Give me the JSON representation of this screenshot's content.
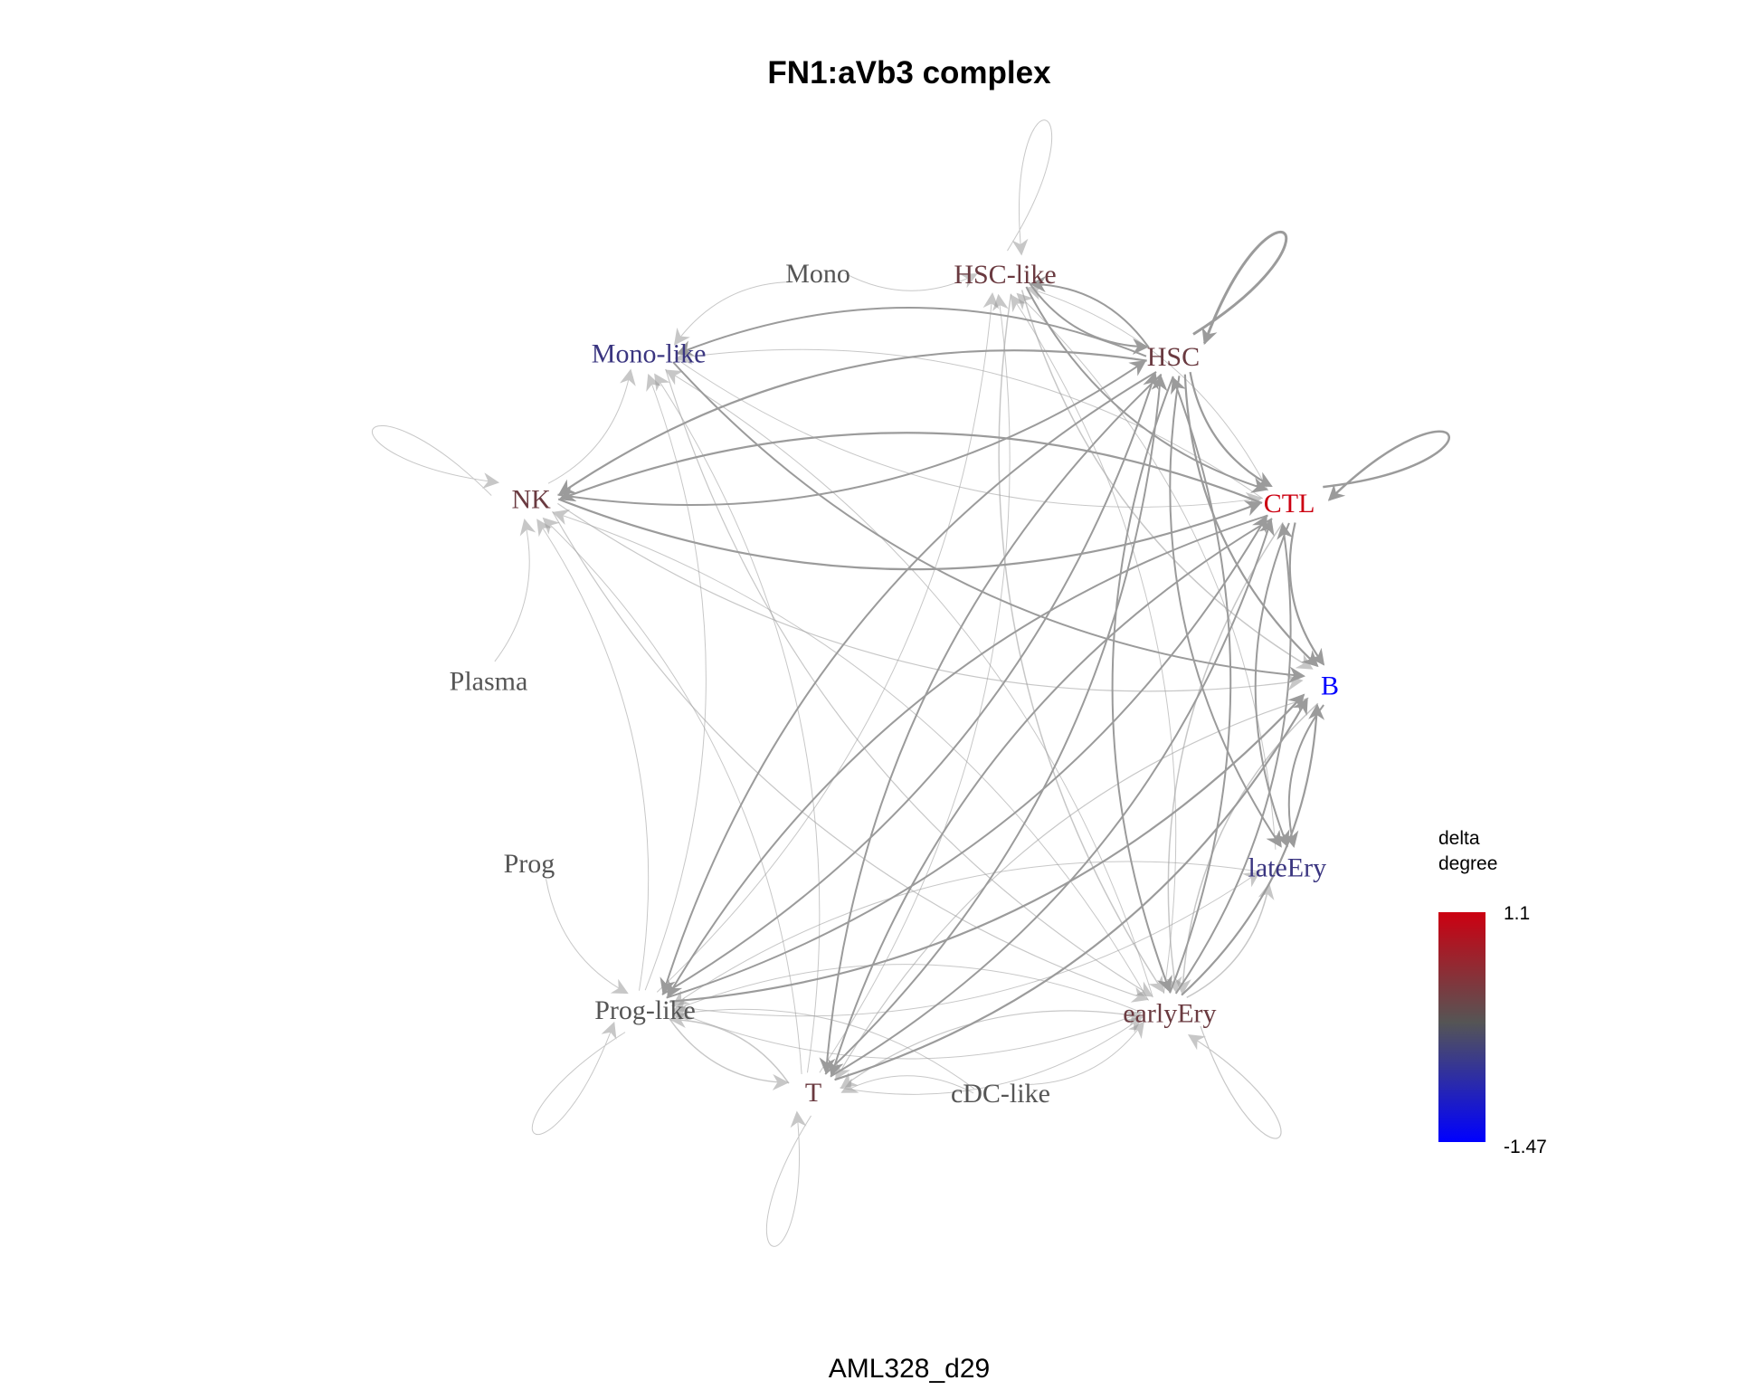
{
  "title": "FN1:aVb3 complex",
  "subtitle": "AML328_d29",
  "legend": {
    "title_line1": "delta",
    "title_line2": "degree",
    "max_label": "1.1",
    "min_label": "-1.47",
    "color_high": "#cc0011",
    "color_mid": "#555555",
    "color_low": "#0000ff"
  },
  "edge_color": "#9b9b9b",
  "nodes": [
    {
      "id": "HSC-like",
      "label": "HSC-like",
      "color": "#6a3a40"
    },
    {
      "id": "HSC",
      "label": "HSC",
      "color": "#6a3a40"
    },
    {
      "id": "CTL",
      "label": "CTL",
      "color": "#cc0011"
    },
    {
      "id": "B",
      "label": "B",
      "color": "#0000ff"
    },
    {
      "id": "lateEry",
      "label": "lateEry",
      "color": "#3a3580"
    },
    {
      "id": "earlyEry",
      "label": "earlyEry",
      "color": "#6a3a40"
    },
    {
      "id": "cDC-like",
      "label": "cDC-like",
      "color": "#555555"
    },
    {
      "id": "T",
      "label": "T",
      "color": "#6a3a40"
    },
    {
      "id": "Prog-like",
      "label": "Prog-like",
      "color": "#555555"
    },
    {
      "id": "Prog",
      "label": "Prog",
      "color": "#555555"
    },
    {
      "id": "Plasma",
      "label": "Plasma",
      "color": "#555555"
    },
    {
      "id": "NK",
      "label": "NK",
      "color": "#6a3a40"
    },
    {
      "id": "Mono-like",
      "label": "Mono-like",
      "color": "#3a3580"
    },
    {
      "id": "Mono",
      "label": "Mono",
      "color": "#555555"
    }
  ],
  "edges": [
    {
      "from": "HSC",
      "to": "HSC",
      "weight": 3
    },
    {
      "from": "CTL",
      "to": "CTL",
      "weight": 2.5
    },
    {
      "from": "HSC-like",
      "to": "HSC-like",
      "weight": 1
    },
    {
      "from": "earlyEry",
      "to": "earlyEry",
      "weight": 1.2
    },
    {
      "from": "NK",
      "to": "NK",
      "weight": 1
    },
    {
      "from": "Prog-like",
      "to": "Prog-like",
      "weight": 1
    },
    {
      "from": "T",
      "to": "T",
      "weight": 1
    },
    {
      "from": "HSC",
      "to": "CTL",
      "weight": 2.2
    },
    {
      "from": "HSC",
      "to": "B",
      "weight": 2.2
    },
    {
      "from": "HSC",
      "to": "lateEry",
      "weight": 2
    },
    {
      "from": "HSC",
      "to": "NK",
      "weight": 2.2
    },
    {
      "from": "HSC",
      "to": "Mono-like",
      "weight": 2
    },
    {
      "from": "HSC",
      "to": "HSC-like",
      "weight": 2
    },
    {
      "from": "HSC",
      "to": "earlyEry",
      "weight": 2
    },
    {
      "from": "HSC",
      "to": "T",
      "weight": 2
    },
    {
      "from": "HSC",
      "to": "Prog-like",
      "weight": 2
    },
    {
      "from": "HSC-like",
      "to": "HSC",
      "weight": 2
    },
    {
      "from": "HSC-like",
      "to": "CTL",
      "weight": 2
    },
    {
      "from": "HSC-like",
      "to": "B",
      "weight": 1.5
    },
    {
      "from": "HSC-like",
      "to": "earlyEry",
      "weight": 1.5
    },
    {
      "from": "CTL",
      "to": "NK",
      "weight": 2.2
    },
    {
      "from": "CTL",
      "to": "B",
      "weight": 2.2
    },
    {
      "from": "CTL",
      "to": "lateEry",
      "weight": 2
    },
    {
      "from": "CTL",
      "to": "T",
      "weight": 2
    },
    {
      "from": "CTL",
      "to": "Prog-like",
      "weight": 2
    },
    {
      "from": "CTL",
      "to": "earlyEry",
      "weight": 1.5
    },
    {
      "from": "CTL",
      "to": "HSC-like",
      "weight": 1
    },
    {
      "from": "CTL",
      "to": "Mono-like",
      "weight": 1
    },
    {
      "from": "NK",
      "to": "CTL",
      "weight": 2.2
    },
    {
      "from": "NK",
      "to": "HSC",
      "weight": 2
    },
    {
      "from": "NK",
      "to": "B",
      "weight": 1.2
    },
    {
      "from": "NK",
      "to": "earlyEry",
      "weight": 1.2
    },
    {
      "from": "NK",
      "to": "Mono-like",
      "weight": 1
    },
    {
      "from": "Mono-like",
      "to": "B",
      "weight": 2
    },
    {
      "from": "Mono-like",
      "to": "earlyEry",
      "weight": 1.2
    },
    {
      "from": "Mono-like",
      "to": "CTL",
      "weight": 1
    },
    {
      "from": "Prog-like",
      "to": "B",
      "weight": 2.2
    },
    {
      "from": "Prog-like",
      "to": "HSC",
      "weight": 2
    },
    {
      "from": "Prog-like",
      "to": "CTL",
      "weight": 2
    },
    {
      "from": "Prog-like",
      "to": "T",
      "weight": 1.5
    },
    {
      "from": "Prog-like",
      "to": "NK",
      "weight": 1
    },
    {
      "from": "Prog-like",
      "to": "Mono-like",
      "weight": 1
    },
    {
      "from": "Prog-like",
      "to": "HSC-like",
      "weight": 1
    },
    {
      "from": "Prog-like",
      "to": "lateEry",
      "weight": 1
    },
    {
      "from": "Prog-like",
      "to": "earlyEry",
      "weight": 1
    },
    {
      "from": "T",
      "to": "B",
      "weight": 2.2
    },
    {
      "from": "T",
      "to": "HSC",
      "weight": 2
    },
    {
      "from": "T",
      "to": "CTL",
      "weight": 2
    },
    {
      "from": "T",
      "to": "Prog-like",
      "weight": 1.5
    },
    {
      "from": "T",
      "to": "HSC-like",
      "weight": 1
    },
    {
      "from": "T",
      "to": "earlyEry",
      "weight": 1
    },
    {
      "from": "T",
      "to": "Mono-like",
      "weight": 1
    },
    {
      "from": "T",
      "to": "NK",
      "weight": 1
    },
    {
      "from": "earlyEry",
      "to": "B",
      "weight": 2.2
    },
    {
      "from": "earlyEry",
      "to": "HSC",
      "weight": 2
    },
    {
      "from": "earlyEry",
      "to": "CTL",
      "weight": 2
    },
    {
      "from": "earlyEry",
      "to": "lateEry",
      "weight": 1.5
    },
    {
      "from": "earlyEry",
      "to": "T",
      "weight": 1.2
    },
    {
      "from": "earlyEry",
      "to": "Prog-like",
      "weight": 1
    },
    {
      "from": "earlyEry",
      "to": "HSC-like",
      "weight": 1
    },
    {
      "from": "earlyEry",
      "to": "Mono-like",
      "weight": 1
    },
    {
      "from": "earlyEry",
      "to": "NK",
      "weight": 1
    },
    {
      "from": "B",
      "to": "lateEry",
      "weight": 2
    },
    {
      "from": "B",
      "to": "earlyEry",
      "weight": 1.5
    },
    {
      "from": "B",
      "to": "T",
      "weight": 1.2
    },
    {
      "from": "lateEry",
      "to": "HSC-like",
      "weight": 1
    },
    {
      "from": "lateEry",
      "to": "Prog-like",
      "weight": 1
    },
    {
      "from": "Mono",
      "to": "HSC-like",
      "weight": 1
    },
    {
      "from": "Mono",
      "to": "Mono-like",
      "weight": 1
    },
    {
      "from": "Plasma",
      "to": "NK",
      "weight": 1
    },
    {
      "from": "Prog",
      "to": "Prog-like",
      "weight": 1
    },
    {
      "from": "cDC-like",
      "to": "T",
      "weight": 1
    },
    {
      "from": "cDC-like",
      "to": "earlyEry",
      "weight": 1
    },
    {
      "from": "cDC-like",
      "to": "Prog-like",
      "weight": 1
    }
  ]
}
